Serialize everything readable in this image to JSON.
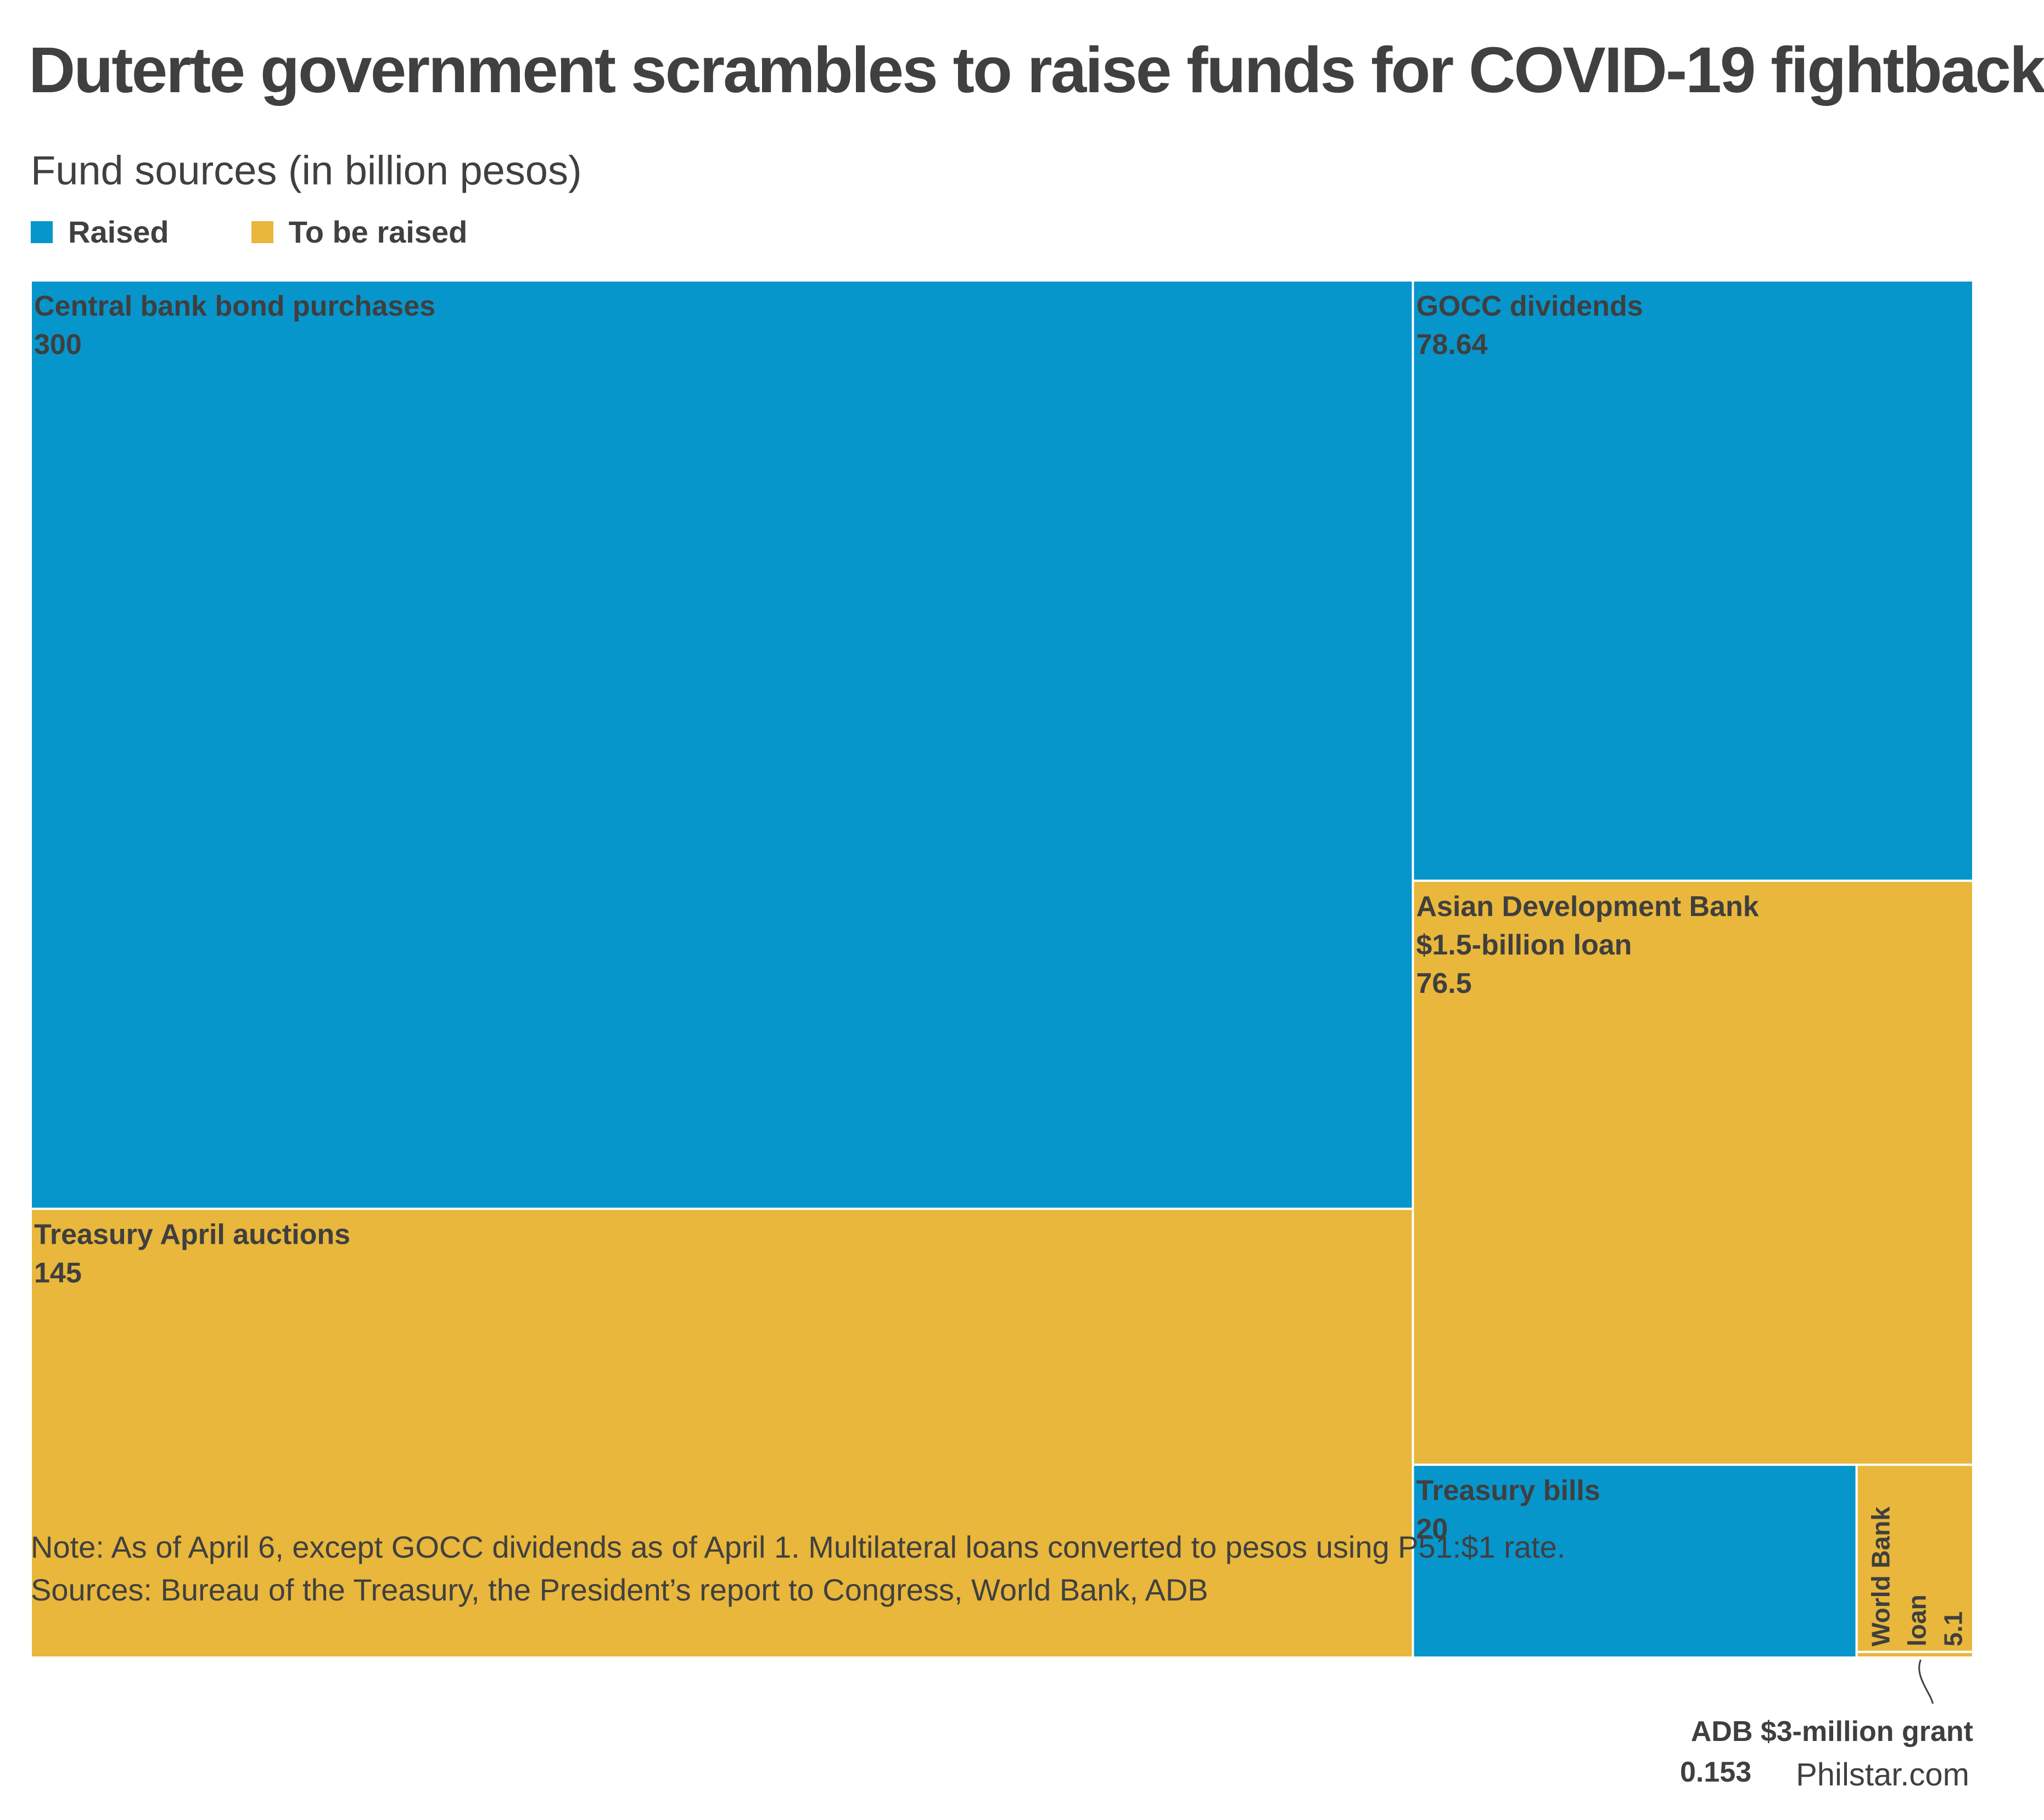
{
  "header": {
    "title": "Duterte government scrambles to raise funds for COVID-19 fightback",
    "subtitle": "Fund sources (in billion pesos)"
  },
  "legend": [
    {
      "label": "Raised",
      "color": "#0696cb"
    },
    {
      "label": "To be raised",
      "color": "#e8b73b"
    }
  ],
  "chart_data": {
    "type": "treemap",
    "unit": "billion pesos",
    "items": [
      {
        "name": "Central bank bond purchases",
        "value": 300,
        "value_label": "300",
        "status": "Raised"
      },
      {
        "name": "Treasury April auctions",
        "value": 145,
        "value_label": "145",
        "status": "To be raised"
      },
      {
        "name": "GOCC dividends",
        "value": 78.64,
        "value_label": "78.64",
        "status": "Raised"
      },
      {
        "name": "Asian Development Bank $1.5-billion loan",
        "name_lines": [
          "Asian Development Bank",
          "$1.5-billion loan"
        ],
        "value": 76.5,
        "value_label": "76.5",
        "status": "To be raised"
      },
      {
        "name": "Treasury bills",
        "value": 20,
        "value_label": "20",
        "status": "Raised"
      },
      {
        "name": "World Bank loan",
        "name_lines": [
          "World Bank",
          "loan"
        ],
        "value": 5.1,
        "value_label": "5.1",
        "status": "To be raised"
      },
      {
        "name": "ADB $3-million grant",
        "value": 0.153,
        "value_label": "0.153",
        "status": "To be raised"
      }
    ]
  },
  "footer": {
    "note": "Note: As of April 6, except GOCC dividends as of April 1. Multilateral loans converted to pesos using P51:$1 rate.",
    "sources": "Sources: Bureau of the Treasury, the President’s report to Congress, World Bank, ADB",
    "credit": "Philstar.com"
  }
}
